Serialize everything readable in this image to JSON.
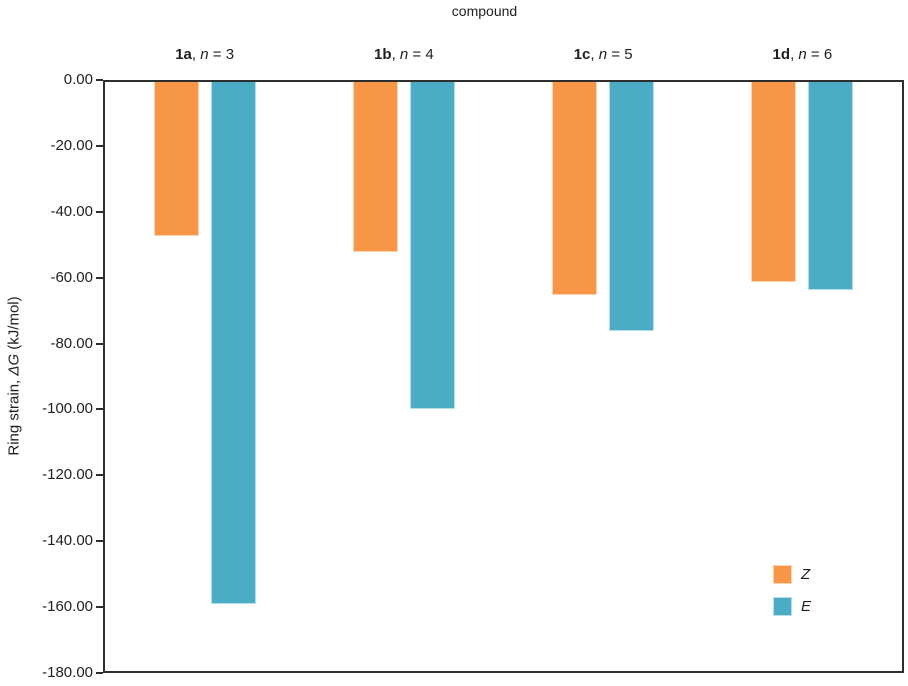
{
  "chart_data": {
    "type": "bar",
    "title": "compound",
    "ylabel": "Ring strain, ΔG (kJ/mol)",
    "ylabel_parts": [
      {
        "text": "Ring strain, "
      },
      {
        "text": "ΔG",
        "italic": true
      },
      {
        "text": " (kJ/mol)"
      }
    ],
    "categories": [
      {
        "label": "1a, n = 3",
        "bold": "1a",
        "sep": ", ",
        "var": "n",
        "tail": " = 3"
      },
      {
        "label": "1b, n = 4",
        "bold": "1b",
        "sep": ", ",
        "var": "n",
        "tail": " = 4"
      },
      {
        "label": "1c, n = 5",
        "bold": "1c",
        "sep": ", ",
        "var": "n",
        "tail": " = 5"
      },
      {
        "label": "1d, n = 6",
        "bold": "1d",
        "sep": ", ",
        "var": "n",
        "tail": " = 6"
      }
    ],
    "series": [
      {
        "name": "Z",
        "color": "#F79646",
        "border_color": "#FBD4AC",
        "values": [
          -47,
          -52,
          -65,
          -61
        ]
      },
      {
        "name": "E",
        "color": "#4BACC6",
        "border_color": "#B7DEE8",
        "values": [
          -159.5,
          -100,
          -76,
          -63.5
        ]
      }
    ],
    "ylim": [
      0,
      -180
    ],
    "ytick_step": 20,
    "ytick_labels": [
      "0.00",
      "-20.00",
      "-40.00",
      "-60.00",
      "-80.00",
      "-100.00",
      "-120.00",
      "-140.00",
      "-160.00",
      "-180.00"
    ],
    "grid": false,
    "legend_position": "right-middle",
    "axis_color": "#2e2e2e",
    "text_color": "#1f1f1f"
  }
}
